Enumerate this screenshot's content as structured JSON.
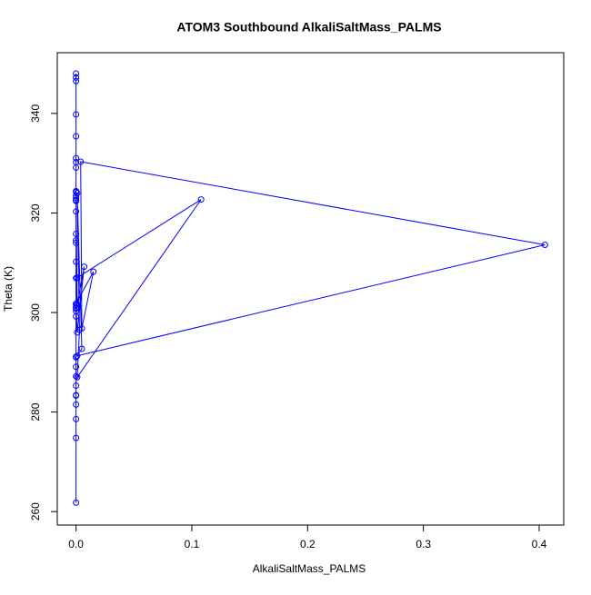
{
  "chart_data": {
    "type": "line",
    "title": "ATOM3 Southbound AlkaliSaltMass_PALMS",
    "x_label": "AlkaliSaltMass_PALMS",
    "y_label": "Theta (K)",
    "xlim": [
      -0.0162,
      0.4212
    ],
    "ylim": [
      257.3,
      352.2
    ],
    "xticks": [
      {
        "value": 0,
        "label": "0.0"
      },
      0.1,
      0.2,
      0.3,
      0.4
    ],
    "yticks": [
      260,
      280,
      300,
      320,
      340
    ],
    "grid": false,
    "series": [
      {
        "color": "#0000ff",
        "x": [
          0,
          0,
          0,
          0,
          0,
          0,
          0,
          0,
          0,
          0,
          0,
          0,
          0,
          0,
          0,
          0,
          0,
          0,
          0,
          0,
          0,
          0,
          0,
          0,
          0,
          0,
          0,
          0,
          0.001,
          0.007,
          0.001,
          0,
          0.015,
          0.005,
          0.004,
          0.405,
          0.001,
          0.005,
          0.001,
          0.003,
          0.001,
          0.108,
          0.001,
          0,
          0,
          0,
          0,
          0,
          0,
          0,
          0
        ],
        "values": [
          261.8,
          274.8,
          278.6,
          281.5,
          283.4,
          285.3,
          287.2,
          289.1,
          291.1,
          299.2,
          301.0,
          306.9,
          310.2,
          314.5,
          315.8,
          320.3,
          322.6,
          323.5,
          324.4,
          329.1,
          330.2,
          331.0,
          335.4,
          339.8,
          346.5,
          347.2,
          348.0,
          323.0,
          301.6,
          309.2,
          296.0,
          301.8,
          308.2,
          296.8,
          330.3,
          313.6,
          291.3,
          292.7,
          324.0,
          296.5,
          287.0,
          322.7,
          307.0,
          301.5,
          300.3,
          291.0,
          283.3,
          300.8,
          314.0,
          324.2,
          322.4
        ]
      }
    ]
  }
}
